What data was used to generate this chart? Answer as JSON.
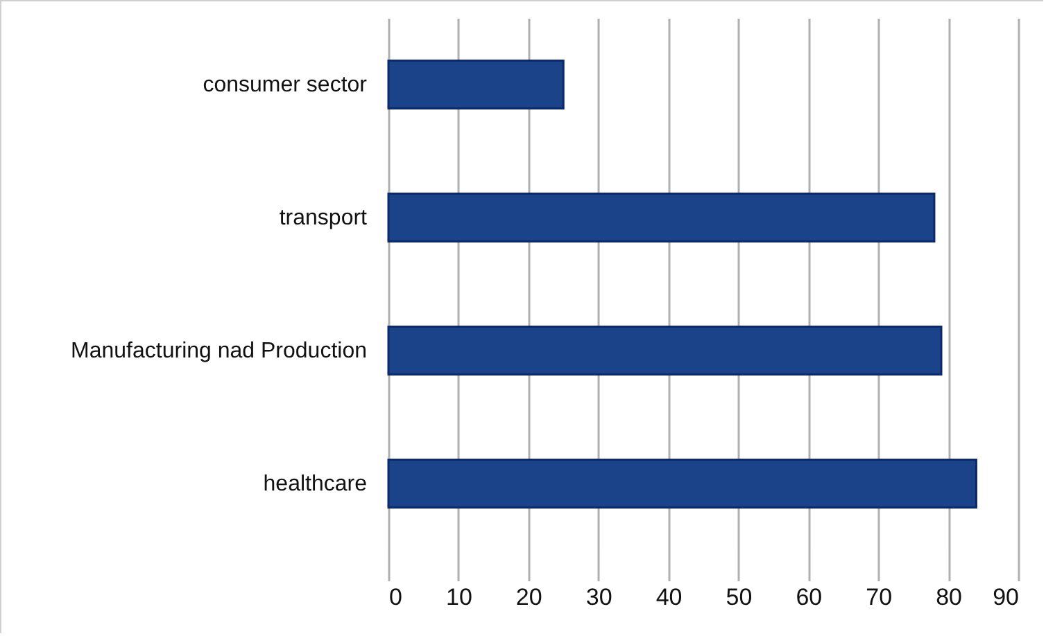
{
  "chart_data": {
    "type": "bar",
    "orientation": "horizontal",
    "categories": [
      "consumer sector",
      "transport",
      "Manufacturing nad Production",
      "healthcare"
    ],
    "values": [
      25,
      78,
      79,
      84
    ],
    "color": "#1a4389",
    "xlim": [
      0,
      90
    ],
    "xticks": [
      0,
      10,
      20,
      30,
      40,
      50,
      60,
      70,
      80,
      90
    ],
    "grid": "x"
  }
}
